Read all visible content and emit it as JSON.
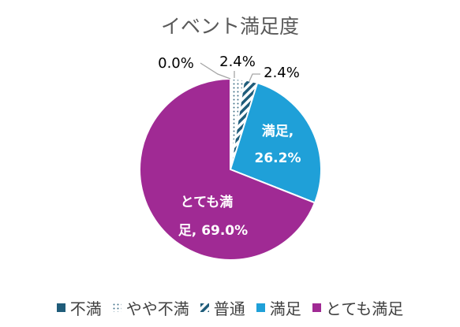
{
  "chart_data": {
    "type": "pie",
    "title": "イベント満足度",
    "categories": [
      "不満",
      "やや不満",
      "普通",
      "満足",
      "とても満足"
    ],
    "values": [
      0.0,
      2.4,
      2.4,
      26.2,
      69.0
    ],
    "unit": "%",
    "data_labels": [
      "0.0%",
      "2.4%",
      "2.4%",
      "満足, 26.2%",
      "とても満足, 69.0%"
    ],
    "colors": [
      "#1F5C7A",
      "#7FA3B8",
      "#1F5C7A",
      "#1FA0D8",
      "#A02A94"
    ],
    "patterns": [
      "solid",
      "dots",
      "diagonal-stripes",
      "solid",
      "solid"
    ],
    "legend_position": "bottom"
  }
}
